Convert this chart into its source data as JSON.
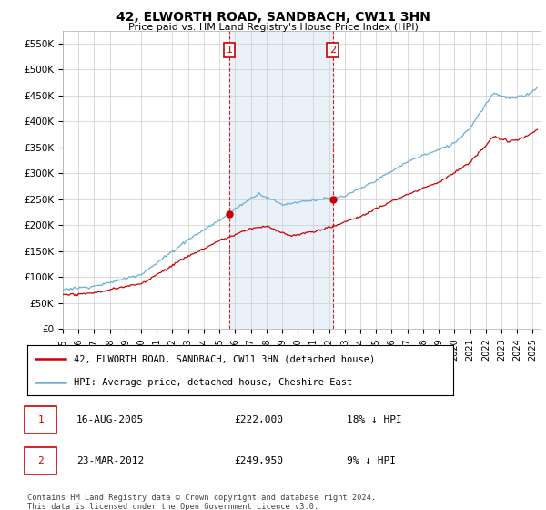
{
  "title": "42, ELWORTH ROAD, SANDBACH, CW11 3HN",
  "subtitle": "Price paid vs. HM Land Registry's House Price Index (HPI)",
  "ylim": [
    0,
    575000
  ],
  "yticks": [
    0,
    50000,
    100000,
    150000,
    200000,
    250000,
    300000,
    350000,
    400000,
    450000,
    500000,
    550000
  ],
  "ytick_labels": [
    "£0",
    "£50K",
    "£100K",
    "£150K",
    "£200K",
    "£250K",
    "£300K",
    "£350K",
    "£400K",
    "£450K",
    "£500K",
    "£550K"
  ],
  "xlim_start": 1995.0,
  "xlim_end": 2025.5,
  "xticks": [
    1995,
    1996,
    1997,
    1998,
    1999,
    2000,
    2001,
    2002,
    2003,
    2004,
    2005,
    2006,
    2007,
    2008,
    2009,
    2010,
    2011,
    2012,
    2013,
    2014,
    2015,
    2016,
    2017,
    2018,
    2019,
    2020,
    2021,
    2022,
    2023,
    2024,
    2025
  ],
  "hpi_color": "#6baed6",
  "price_color": "#cc0000",
  "marker_color": "#cc0000",
  "dashed_color": "#cc0000",
  "transaction1_x": 2005.625,
  "transaction1_y": 222000,
  "transaction1_label": "1",
  "transaction2_x": 2012.23,
  "transaction2_y": 249950,
  "transaction2_label": "2",
  "legend_entry1": "42, ELWORTH ROAD, SANDBACH, CW11 3HN (detached house)",
  "legend_entry2": "HPI: Average price, detached house, Cheshire East",
  "table_row1_num": "1",
  "table_row1_date": "16-AUG-2005",
  "table_row1_price": "£222,000",
  "table_row1_hpi": "18% ↓ HPI",
  "table_row2_num": "2",
  "table_row2_date": "23-MAR-2012",
  "table_row2_price": "£249,950",
  "table_row2_hpi": "9% ↓ HPI",
  "footer": "Contains HM Land Registry data © Crown copyright and database right 2024.\nThis data is licensed under the Open Government Licence v3.0.",
  "background_color": "#ffffff",
  "grid_color": "#cccccc",
  "shaded_region_color": "#dce9f5"
}
